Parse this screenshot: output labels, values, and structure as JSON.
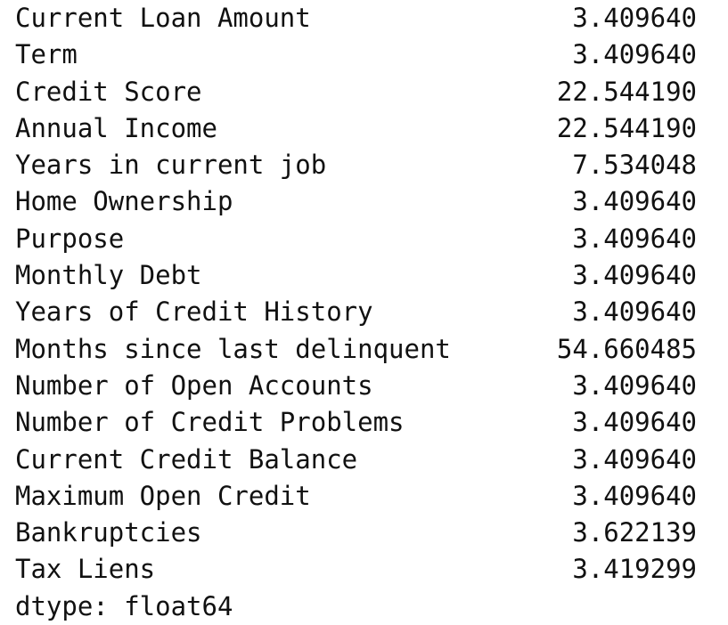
{
  "series_output": {
    "rows": [
      {
        "label": "Current Loan Amount",
        "value": "3.409640"
      },
      {
        "label": "Term",
        "value": "3.409640"
      },
      {
        "label": "Credit Score",
        "value": "22.544190"
      },
      {
        "label": "Annual Income",
        "value": "22.544190"
      },
      {
        "label": "Years in current job",
        "value": "7.534048"
      },
      {
        "label": "Home Ownership",
        "value": "3.409640"
      },
      {
        "label": "Purpose",
        "value": "3.409640"
      },
      {
        "label": "Monthly Debt",
        "value": "3.409640"
      },
      {
        "label": "Years of Credit History",
        "value": "3.409640"
      },
      {
        "label": "Months since last delinquent",
        "value": "54.660485"
      },
      {
        "label": "Number of Open Accounts",
        "value": "3.409640"
      },
      {
        "label": "Number of Credit Problems",
        "value": "3.409640"
      },
      {
        "label": "Current Credit Balance",
        "value": "3.409640"
      },
      {
        "label": "Maximum Open Credit",
        "value": "3.409640"
      },
      {
        "label": "Bankruptcies",
        "value": "3.622139"
      },
      {
        "label": "Tax Liens",
        "value": "3.419299"
      }
    ],
    "dtype": "dtype: float64"
  }
}
